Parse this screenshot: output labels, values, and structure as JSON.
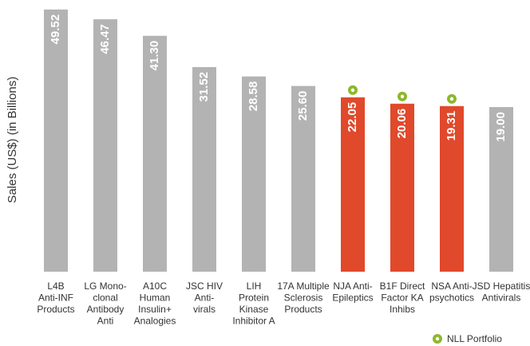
{
  "chart_data": {
    "type": "bar",
    "y_label": "Sales (US$) (in Billions)",
    "categories": [
      [
        "L4B",
        "Anti-INF",
        "Products"
      ],
      [
        "LG Mono-",
        "clonal",
        "Antibody",
        "Anti"
      ],
      [
        "A10C",
        "Human",
        "Insulin+",
        "Analogies"
      ],
      [
        "JSC HIV",
        "Anti-",
        "virals"
      ],
      [
        "LIH",
        "Protein",
        "Kinase",
        "Inhibitor A"
      ],
      [
        "17A Multiple",
        "Sclerosis",
        "Products"
      ],
      [
        "NJA Anti-",
        "Epileptics"
      ],
      [
        "B1F Direct",
        "Factor KA",
        "Inhibs"
      ],
      [
        "NSA Anti-",
        "psychotics"
      ],
      [
        "JSD Hepatitis",
        "Antivirals"
      ]
    ],
    "values": [
      49.52,
      46.47,
      41.3,
      31.52,
      28.58,
      25.6,
      22.05,
      20.06,
      19.31,
      19.0
    ],
    "value_labels": [
      "49.52",
      "46.47",
      "41.30",
      "31.52",
      "28.58",
      "25.60",
      "22.05",
      "20.06",
      "19.31",
      "19.00"
    ],
    "colors": [
      "#b3b3b3",
      "#b3b3b3",
      "#b3b3b3",
      "#b3b3b3",
      "#b3b3b3",
      "#b3b3b3",
      "#e0492b",
      "#e0492b",
      "#e0492b",
      "#b3b3b3"
    ],
    "portfolio": [
      false,
      false,
      false,
      false,
      false,
      false,
      true,
      true,
      true,
      false
    ],
    "legend": {
      "label": "NLL Portfolio",
      "color": "#8cb82b",
      "position": "bottom-right"
    },
    "ylim": [
      -32.5,
      50
    ]
  }
}
